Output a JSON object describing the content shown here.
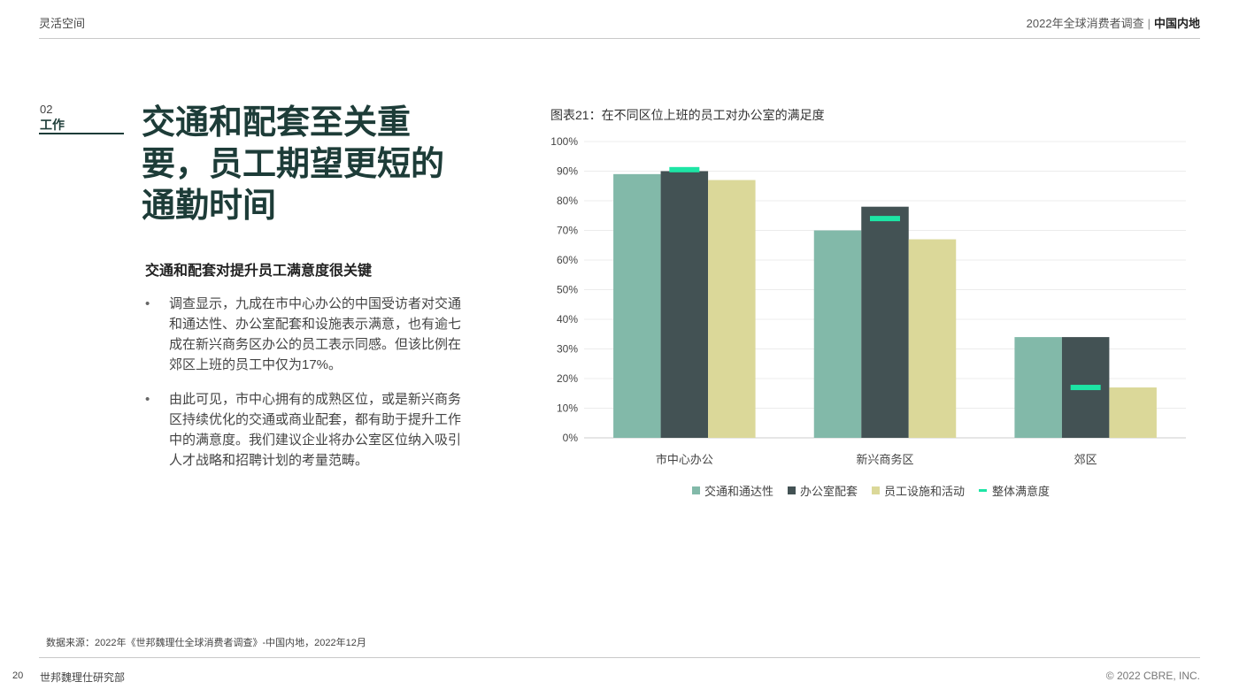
{
  "header": {
    "left_title": "灵活空间",
    "report_title": "2022年全球消费者调查",
    "separator": "|",
    "region": "中国内地"
  },
  "section": {
    "number": "02",
    "label": "工作"
  },
  "headline": "交通和配套至关重要，员工期望更短的通勤时间",
  "subhead": "交通和配套对提升员工满意度很关键",
  "bullets": [
    "调查显示，九成在市中心办公的中国受访者对交通和通达性、办公室配套和设施表示满意，也有逾七成在新兴商务区办公的员工表示同感。但该比例在郊区上班的员工中仅为17%。",
    "由此可见，市中心拥有的成熟区位，或是新兴商务区持续优化的交通或商业配套，都有助于提升工作中的满意度。我们建议企业将办公室区位纳入吸引人才战略和招聘计划的考量范畴。"
  ],
  "chart_data": {
    "type": "bar",
    "title": "图表21：在不同区位上班的员工对办公室的满足度",
    "categories": [
      "市中心办公",
      "新兴商务区",
      "郊区"
    ],
    "series": [
      {
        "name": "交通和通达性",
        "values": [
          89,
          70,
          34
        ],
        "color": "#82b9a9"
      },
      {
        "name": "办公室配套",
        "values": [
          90,
          78,
          34
        ],
        "color": "#435254"
      },
      {
        "name": "员工设施和活动",
        "values": [
          87,
          67,
          17
        ],
        "color": "#dbd899"
      }
    ],
    "overall": {
      "name": "整体满意度",
      "values": [
        90.5,
        74,
        17
      ],
      "color": "#1de5a5",
      "marker": "dash"
    },
    "y_ticks": [
      "0%",
      "10%",
      "20%",
      "30%",
      "40%",
      "50%",
      "60%",
      "70%",
      "80%",
      "90%",
      "100%"
    ],
    "ylim": [
      0,
      100
    ],
    "grid": true,
    "legend_position": "bottom"
  },
  "footer": {
    "source": "数据来源：2022年《世邦魏理仕全球消费者调查》-中国内地，2022年12月",
    "page_number": "20",
    "department": "世邦魏理仕研究部",
    "copyright": "© 2022 CBRE, INC."
  }
}
